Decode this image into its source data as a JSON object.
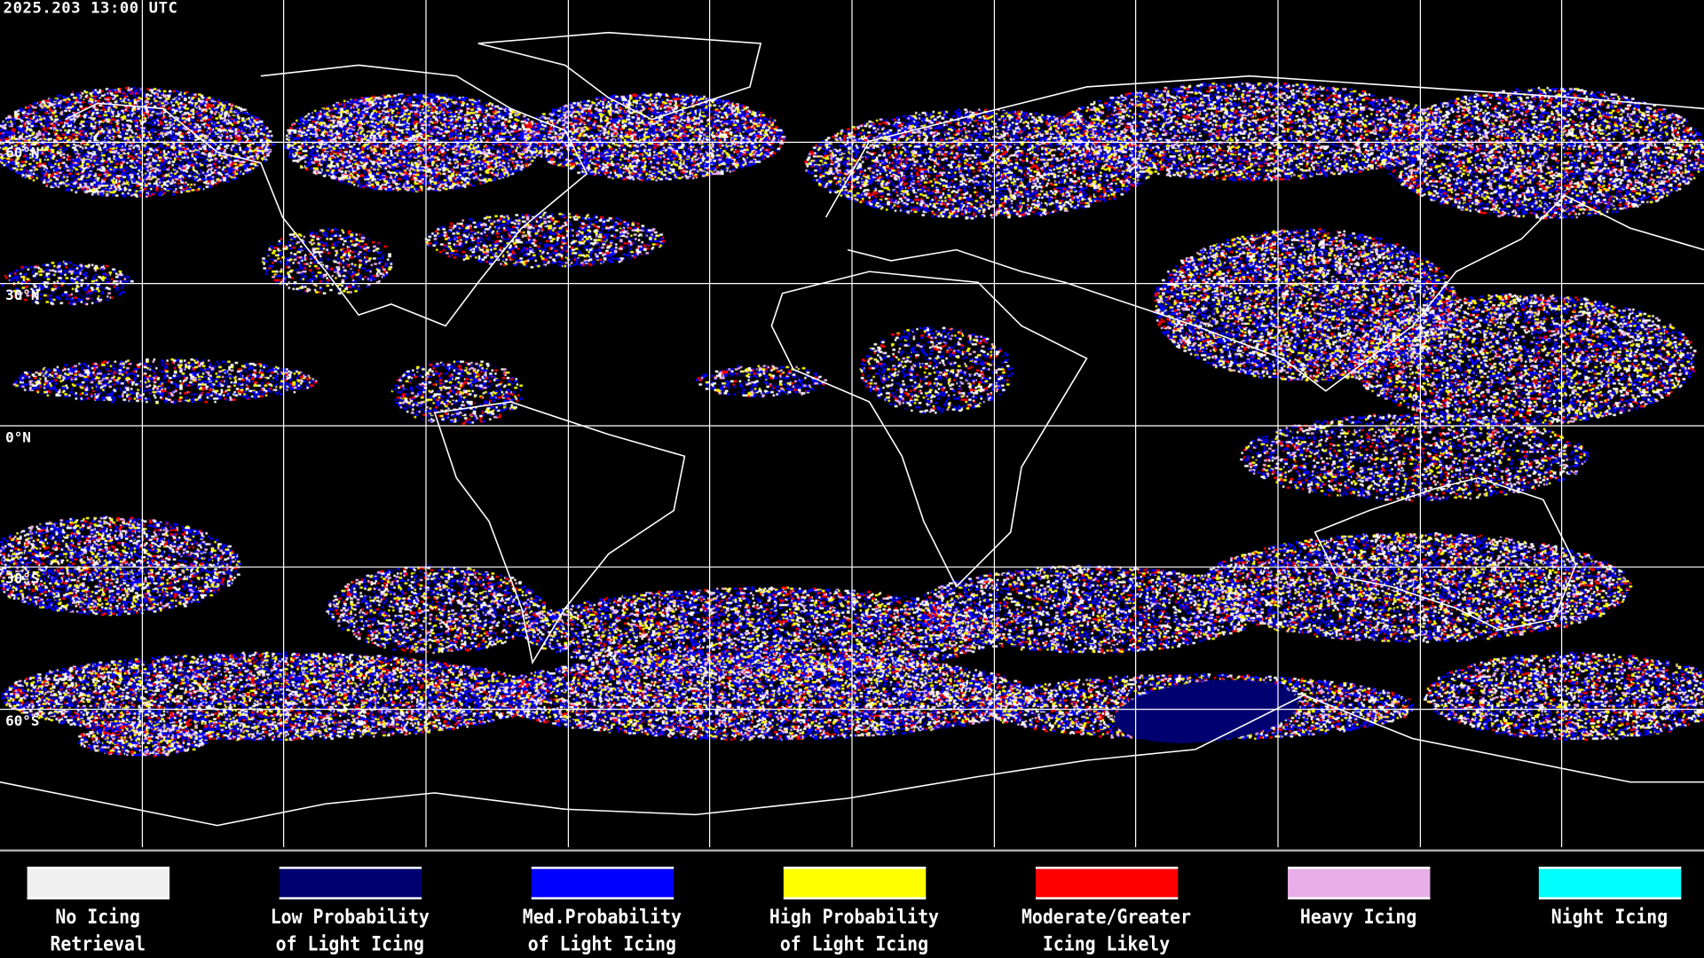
{
  "header": {
    "timestamp": "2025.203 13:00 UTC"
  },
  "map": {
    "latitude_labels": [
      "60°N",
      "30°N",
      "0°N",
      "30°S",
      "60°S"
    ],
    "background": "#000000",
    "gridline_color": "#ffffff",
    "coastline_color": "#ffffff"
  },
  "legend": [
    {
      "line1": "No Icing",
      "line2": "Retrieval",
      "color": "#f0f0f0"
    },
    {
      "line1": "Low Probability",
      "line2": "of Light Icing",
      "color": "#000070"
    },
    {
      "line1": "Med.Probability",
      "line2": "of Light Icing",
      "color": "#0000ff"
    },
    {
      "line1": "High Probability",
      "line2": "of Light Icing",
      "color": "#ffff00"
    },
    {
      "line1": "Moderate/Greater",
      "line2": "Icing Likely",
      "color": "#ff0000"
    },
    {
      "line1": "Heavy Icing",
      "line2": "",
      "color": "#e8aee8"
    },
    {
      "line1": "Night Icing",
      "line2": "",
      "color": "#00ffff"
    }
  ]
}
